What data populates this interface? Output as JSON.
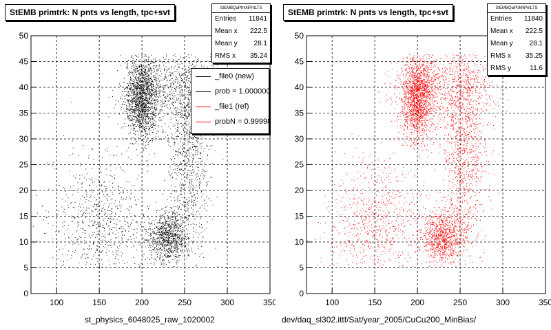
{
  "panels": [
    {
      "title": "StEMB primtrk: N pnts vs length, tpc+svt",
      "stats_name": "StEMBQaPtrkNPntLTS",
      "stats": [
        {
          "label": "Entries",
          "value": "11841"
        },
        {
          "label": "Mean x",
          "value": "222.5"
        },
        {
          "label": "Mean y",
          "value": "28.1"
        },
        {
          "label": "RMS x",
          "value": "35.24"
        }
      ],
      "legend": [
        {
          "label": "_file0 (new)",
          "color": "#000000"
        },
        {
          "label": "prob = 1.000000",
          "color": "#000000"
        },
        {
          "label": "_file1 (ref)",
          "color": "#ff0000"
        },
        {
          "label": "probN = 0.99998",
          "color": "#ff0000"
        }
      ],
      "xfooter": "st_physics_6048025_raw_1020002"
    },
    {
      "title": "StEMB primtrk: N pnts vs length, tpc+svt",
      "stats_name": "StEMBQaPtrkNPntLTS",
      "stats": [
        {
          "label": "Entries",
          "value": "11840"
        },
        {
          "label": "Mean x",
          "value": "222.5"
        },
        {
          "label": "Mean y",
          "value": "28.1"
        },
        {
          "label": "RMS x",
          "value": "35.25"
        },
        {
          "label": "RMS y",
          "value": "11.6"
        }
      ],
      "xfooter": "dev/daq_sl302.ittf/Sat/year_2005/CuCu200_MinBias/"
    }
  ],
  "chart_data": [
    {
      "type": "scatter",
      "title": "StEMB primtrk: N pnts vs length, tpc+svt",
      "xlabel": "st_physics_6048025_raw_1020002",
      "ylabel": "",
      "xlim": [
        70,
        350
      ],
      "ylim": [
        0,
        50
      ],
      "xticks": [
        100,
        150,
        200,
        250,
        300,
        350
      ],
      "yticks": [
        0,
        5,
        10,
        15,
        20,
        25,
        30,
        35,
        40,
        45,
        50
      ],
      "grid": true,
      "color": "#000000",
      "dense_regions": [
        {
          "x": 200,
          "y": 38,
          "sx": 10,
          "sy": 4,
          "weight": 0.32
        },
        {
          "x": 230,
          "y": 11,
          "sx": 12,
          "sy": 2.5,
          "weight": 0.18
        },
        {
          "x": 255,
          "y": 28,
          "sx": 12,
          "sy": 10,
          "weight": 0.2
        },
        {
          "x": 240,
          "y": 40,
          "sx": 30,
          "sy": 4,
          "weight": 0.15
        },
        {
          "x": 150,
          "y": 14,
          "sx": 30,
          "sy": 6,
          "weight": 0.15
        }
      ],
      "stats": {
        "entries": 11841,
        "mean_x": 222.5,
        "mean_y": 28.1,
        "rms_x": 35.24
      }
    },
    {
      "type": "scatter",
      "title": "StEMB primtrk: N pnts vs length, tpc+svt",
      "xlabel": "dev/daq_sl302.ittf/Sat/year_2005/CuCu200_MinBias/",
      "ylabel": "",
      "xlim": [
        70,
        350
      ],
      "ylim": [
        0,
        50
      ],
      "xticks": [
        100,
        150,
        200,
        250,
        300,
        350
      ],
      "yticks": [
        0,
        5,
        10,
        15,
        20,
        25,
        30,
        35,
        40,
        45,
        50
      ],
      "grid": true,
      "color": "#ff0000",
      "dense_regions": [
        {
          "x": 200,
          "y": 38,
          "sx": 10,
          "sy": 4,
          "weight": 0.32
        },
        {
          "x": 230,
          "y": 11,
          "sx": 12,
          "sy": 2.5,
          "weight": 0.18
        },
        {
          "x": 255,
          "y": 28,
          "sx": 12,
          "sy": 10,
          "weight": 0.2
        },
        {
          "x": 240,
          "y": 40,
          "sx": 30,
          "sy": 4,
          "weight": 0.15
        },
        {
          "x": 150,
          "y": 14,
          "sx": 30,
          "sy": 6,
          "weight": 0.15
        }
      ],
      "stats": {
        "entries": 11840,
        "mean_x": 222.5,
        "mean_y": 28.1,
        "rms_x": 35.25,
        "rms_y": 11.6
      }
    }
  ]
}
